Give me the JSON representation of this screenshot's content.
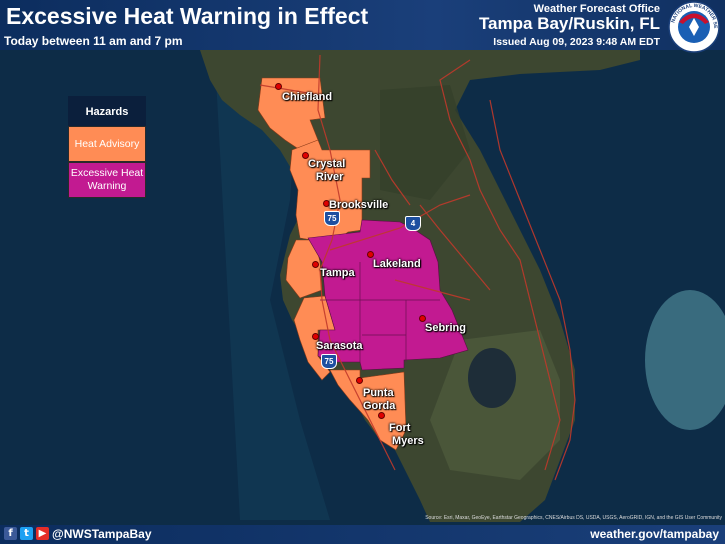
{
  "header": {
    "title": "Excessive Heat Warning in Effect",
    "subtitle": "Today between 11 am and 7 pm",
    "office_label": "Weather Forecast Office",
    "office_name": "Tampa Bay/Ruskin, FL",
    "issued": "Issued Aug 09, 2023 9:48 AM EDT",
    "logo_text": "NATIONAL WEATHER SERVICE"
  },
  "legend": {
    "title": "Hazards",
    "items": [
      {
        "label": "Heat Advisory",
        "color": "#ff8c55"
      },
      {
        "label": "Excessive Heat Warning",
        "color": "#c21a91"
      }
    ]
  },
  "cities": {
    "chiefland": "Chiefland",
    "crystal_river_1": "Crystal",
    "crystal_river_2": "River",
    "brooksville": "Brooksville",
    "tampa": "Tampa",
    "lakeland": "Lakeland",
    "sebring": "Sebring",
    "sarasota": "Sarasota",
    "punta_gorda_1": "Punta",
    "punta_gorda_2": "Gorda",
    "fort_myers_1": "Fort",
    "fort_myers_2": "Myers"
  },
  "highways": {
    "i75_north": "75",
    "i4": "4",
    "i75_south": "75"
  },
  "footer": {
    "handle": "@NWSTampaBay",
    "website": "weather.gov/tampabay",
    "credits": "Source: Esri, Maxar, GeoEye, Earthstar Geographics, CNES/Airbus DS, USDA, USGS, AeroGRID, IGN, and the GIS User Community"
  },
  "icons": [
    "facebook-icon",
    "twitter-icon",
    "youtube-icon",
    "nws-logo"
  ],
  "colors": {
    "heat_advisory": "#ff8c55",
    "excessive_heat_warning": "#c21a91",
    "header_bg": "#0c2d5e",
    "water": "#0b2a45",
    "land": "#3f4a33",
    "roads": "#c0392b"
  }
}
